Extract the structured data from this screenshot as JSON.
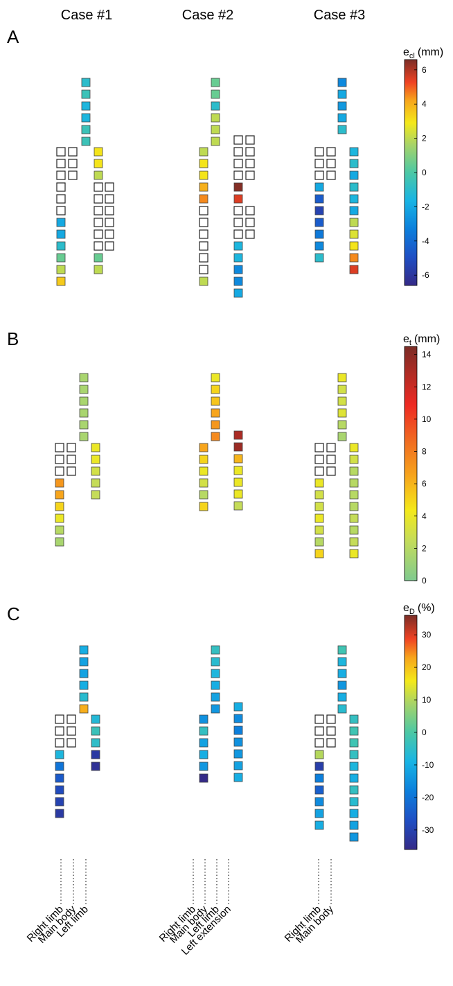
{
  "cases": [
    "Case #1",
    "Case #2",
    "Case #3"
  ],
  "panels": [
    {
      "letter": "A",
      "colorbar": {
        "label_main": "e",
        "label_sub": "cl",
        "label_unit": "(mm)",
        "min": -6.6,
        "max": 6.6,
        "ticks": [
          6,
          4,
          2,
          0,
          -2,
          -4,
          -6
        ]
      },
      "cases": [
        {
          "main": [
            -1,
            -0.5,
            -1.5,
            -1.5,
            -0.5,
            -0.5
          ],
          "right": [
            null,
            null,
            null,
            -2,
            -2,
            -1,
            0.5,
            2,
            3.5
          ],
          "left": [
            3,
            3,
            2,
            null,
            null,
            null,
            null,
            null,
            null,
            0.5,
            2
          ],
          "right_nulls": [
            3,
            0
          ],
          "left_nulls": [
            3,
            0
          ]
        },
        {
          "main": [
            0.5,
            0.5,
            -1,
            2,
            2,
            2
          ],
          "right": [
            2,
            3,
            3,
            4,
            4.5,
            null,
            null,
            null,
            null,
            null,
            null,
            2
          ],
          "left": [
            null,
            null,
            null,
            null,
            6.5,
            5.5,
            null,
            null,
            null,
            -1.5,
            -1.5,
            -3,
            -3,
            -2
          ],
          "extra": true
        },
        {
          "main": [
            -3,
            -2,
            -2.5,
            -2,
            -1
          ],
          "right": [
            -2,
            -4.5,
            -5.5,
            -4.5,
            -3.5,
            -3,
            -1
          ],
          "left": [
            -1.5,
            -1,
            -2,
            -1,
            -1.5,
            -2,
            2,
            2.5,
            3,
            4.5,
            5.5
          ]
        }
      ]
    },
    {
      "letter": "B",
      "colorbar": {
        "label_main": "e",
        "label_sub": "t",
        "label_unit": "(mm)",
        "min": 0,
        "max": 14.5,
        "ticks": [
          14,
          12,
          10,
          8,
          6,
          4,
          2,
          0
        ]
      },
      "cases": [
        {
          "main": [
            1.5,
            1.5,
            1.5,
            1.5,
            1.5,
            1.5
          ],
          "right": [
            7,
            6.5,
            5,
            4,
            2,
            1.5
          ],
          "left": [
            4,
            4,
            3,
            2.5,
            2.5
          ]
        },
        {
          "main": [
            4,
            5,
            5.5,
            6.5,
            7,
            7.5
          ],
          "right": [
            6.5,
            5,
            4,
            3,
            2,
            5
          ],
          "left": [
            13,
            13.5,
            6,
            4,
            4,
            4,
            2.5
          ]
        },
        {
          "main": [
            4,
            3,
            3,
            3.5,
            2,
            1.5
          ],
          "right": [
            4,
            3,
            3,
            4,
            3,
            2,
            5
          ],
          "left": [
            4,
            3,
            2,
            2,
            2,
            2,
            2.5,
            2,
            2.5,
            4
          ]
        }
      ]
    },
    {
      "letter": "C",
      "colorbar": {
        "label_main": "e",
        "label_sub": "D",
        "label_unit": "(%)",
        "min": -36,
        "max": 36,
        "ticks": [
          30,
          20,
          10,
          0,
          -10,
          -20,
          -30
        ]
      },
      "cases": [
        {
          "main": [
            -10,
            -12,
            -12,
            -10,
            -6,
            22
          ],
          "right": [
            -8,
            -20,
            -25,
            -28,
            -30,
            -32
          ],
          "left": [
            -7,
            -3,
            -5,
            -32,
            -34
          ]
        },
        {
          "main": [
            -4,
            -6,
            -8,
            -10,
            -12,
            -14
          ],
          "right": [
            -15,
            -4,
            -12,
            -10,
            -14,
            -36
          ],
          "left": [
            -10,
            -16,
            -18,
            -15,
            -14,
            -12,
            -10
          ]
        },
        {
          "main": [
            -2,
            -8,
            -10,
            -14,
            -10,
            -6
          ],
          "right": [
            10,
            -31,
            -18,
            -24,
            -16,
            -12,
            -10
          ],
          "left": [
            -4,
            -2,
            -2,
            -4,
            -8,
            -10,
            -4,
            -6,
            -10,
            -12,
            -14
          ]
        }
      ]
    }
  ],
  "branch_labels": [
    [
      "Right limb",
      "Main body",
      "Left limb"
    ],
    [
      "Right limb",
      "Main body",
      "Left limb",
      "Left extension"
    ],
    [
      "Right limb",
      "Main body"
    ]
  ],
  "colors": {
    "empty_stroke": "#222222",
    "square_stroke": "#444444"
  }
}
